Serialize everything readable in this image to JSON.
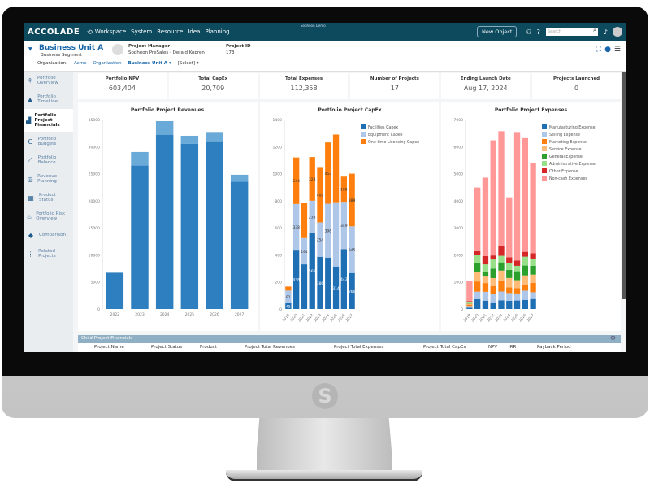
{
  "topbar": {
    "window_title": "Sopheon Demo",
    "brand": "ACCOLADE",
    "nav": [
      "Workspace",
      "System",
      "Resource",
      "Idea",
      "Planning"
    ],
    "new_object": "New Object",
    "search_placeholder": "Search"
  },
  "header": {
    "title": "Business Unit A",
    "segment": "Business Segment",
    "pm_label": "Project Manager",
    "pm_value": "Sopheon PreSales - Derald Kopren",
    "pid_label": "Project ID",
    "pid_value": "173",
    "breadcrumb": {
      "label": "Organization:",
      "items": [
        "Acme",
        "Organization",
        "Business Unit A ▾",
        "[Select] ▾"
      ]
    }
  },
  "sidebar": {
    "items": [
      {
        "label": "Portfolio Overview",
        "icon": "hierarchy-icon"
      },
      {
        "label": "Portfolio TimeLine",
        "icon": "road-icon"
      },
      {
        "label": "Portfolio Project Financials",
        "icon": "chart-icon",
        "active": true
      },
      {
        "label": "Portfolio Budgets",
        "icon": "budget-icon"
      },
      {
        "label": "Portfolio Balance",
        "icon": "line-chart-icon"
      },
      {
        "label": "Revenue Planning",
        "icon": "target-icon"
      },
      {
        "label": "Product Status",
        "icon": "grid-icon"
      },
      {
        "label": "Portfolio Risk Overview",
        "icon": "flame-icon"
      },
      {
        "label": "Comparison",
        "icon": "diamond-icon"
      },
      {
        "label": "Related Projects",
        "icon": "tree-icon"
      }
    ]
  },
  "kpis": [
    {
      "title": "Portfolio NPV",
      "value": "603,404"
    },
    {
      "title": "Total CapEx",
      "value": "20,709"
    },
    {
      "title": "Total Expenses",
      "value": "112,358"
    },
    {
      "title": "Number of Projects",
      "value": "17"
    },
    {
      "title": "Ending Launch Date",
      "value": "Aug 17, 2024"
    },
    {
      "title": "Projects Launched",
      "value": "0"
    }
  ],
  "table": {
    "title": "Child Project Financials",
    "columns": [
      "Project Name",
      "Project Status",
      "Product",
      "Project Total Revenues",
      "Project Total Expenses",
      "Project Total CapEx",
      "NPV",
      "IRR",
      "Payback Period"
    ]
  },
  "chart_data": [
    {
      "type": "bar",
      "stacked": true,
      "title": "Portfolio Project Revenues",
      "categories": [
        "2022",
        "2023",
        "2024",
        "2025",
        "2026",
        "2027"
      ],
      "ylim": [
        0,
        35000
      ],
      "yticks": [
        0,
        5000,
        10000,
        15000,
        20000,
        25000,
        30000,
        35000
      ],
      "series": [
        {
          "values": [
            6700,
            26500,
            32200,
            30500,
            31000,
            23500
          ],
          "color": "#2e7fbf"
        },
        {
          "values": [
            0,
            2500,
            2500,
            1500,
            1700,
            1300
          ],
          "color": "#6aaad8"
        }
      ]
    },
    {
      "type": "bar",
      "stacked": true,
      "title": "Portfolio Project CapEx",
      "categories": [
        "2019",
        "2020",
        "2021",
        "2022",
        "2023",
        "2024",
        "2025",
        "2026",
        "2027"
      ],
      "ylim": [
        0,
        1400
      ],
      "yticks": [
        0,
        200,
        400,
        600,
        800,
        1000,
        1200,
        1400
      ],
      "legend": "top-right",
      "series": [
        {
          "name": "Facilities Capex",
          "color": "#1f6fb4",
          "values": [
            45,
            438,
            330,
            562,
            386,
            380,
            314,
            443,
            266
          ]
        },
        {
          "name": "Equipment Capex",
          "color": "#aec7e8",
          "values": [
            91,
            338,
            194,
            238,
            254,
            398,
            475,
            349,
            345
          ]
        },
        {
          "name": "One-time Licensing Capex",
          "color": "#ff7f0e",
          "values": [
            30,
            344,
            260,
            323,
            409,
            453,
            500,
            186,
            389
          ]
        }
      ],
      "labels": [
        [
          45,
          438,
          null,
          562,
          386,
          null,
          314,
          443,
          266
        ],
        [
          91,
          338,
          194,
          238,
          254,
          398,
          null,
          349,
          345
        ],
        [
          null,
          344,
          null,
          323,
          409,
          453,
          null,
          186,
          389
        ]
      ]
    },
    {
      "type": "bar",
      "stacked": true,
      "title": "Portfolio Project Expenses",
      "categories": [
        "2019",
        "2020",
        "2021",
        "2022",
        "2023",
        "2024",
        "2025",
        "2026",
        "2027"
      ],
      "ylim": [
        0,
        7000
      ],
      "yticks": [
        0,
        1000,
        2000,
        3000,
        4000,
        5000,
        6000,
        7000
      ],
      "legend": "top-right",
      "series": [
        {
          "name": "Manufacturing Expense",
          "color": "#1f6fb4",
          "values": [
            50,
            360,
            309,
            248,
            322,
            301,
            313,
            337,
            370
          ]
        },
        {
          "name": "Selling Expense",
          "color": "#aec7e8",
          "values": [
            60,
            280,
            326,
            302,
            323,
            288,
            260,
            341,
            248
          ]
        },
        {
          "name": "Marketing Expense",
          "color": "#ff7f0e",
          "values": [
            50,
            378,
            324,
            299,
            395,
            209,
            200,
            200,
            343
          ]
        },
        {
          "name": "Service Expense",
          "color": "#ffbb78",
          "values": [
            40,
            365,
            268,
            294,
            379,
            348,
            291,
            363,
            309
          ]
        },
        {
          "name": "General Expense",
          "color": "#2ca02c",
          "values": [
            30,
            330,
            150,
            350,
            304,
            300,
            330,
            364,
            328
          ]
        },
        {
          "name": "Administrative Expense",
          "color": "#98df8a",
          "values": [
            40,
            275,
            272,
            336,
            242,
            267,
            200,
            329,
            266
          ]
        },
        {
          "name": "Other Expense",
          "color": "#d62728",
          "values": [
            20,
            180,
            304,
            150,
            360,
            200,
            200,
            180,
            200
          ]
        },
        {
          "name": "Non-cash Expenses",
          "color": "#ff9896",
          "values": [
            740,
            2321,
            2900,
            4254,
            4244,
            2213,
            4744,
            4200,
            3339
          ]
        }
      ]
    }
  ]
}
